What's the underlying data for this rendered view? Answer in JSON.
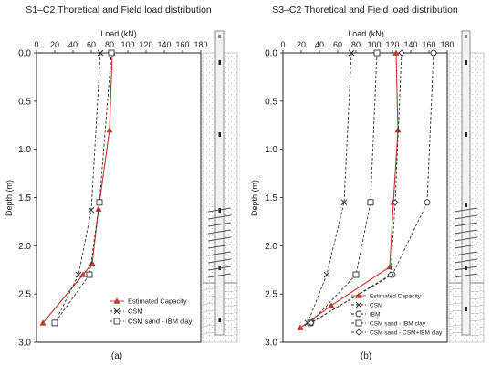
{
  "chart_data": [
    {
      "type": "line",
      "title": "S1–C2 Thoretical and Field load distribution",
      "xlabel": "Load (kN)",
      "ylabel": "Depth (m)",
      "xlim": [
        0,
        180
      ],
      "ylim": [
        0,
        3.0
      ],
      "y_inverted": true,
      "x_axis_position": "top",
      "xticks": [
        "0",
        "20",
        "40",
        "60",
        "80",
        "100",
        "120",
        "140",
        "160",
        "180"
      ],
      "yticks": [
        "0.0",
        "0.5",
        "1.0",
        "1.5",
        "2.0",
        "2.5",
        "3.0"
      ],
      "grid": false,
      "legend_position": "bottom-right",
      "panel_label": "(a)",
      "series": [
        {
          "name": "Estimated Capacity",
          "color": "#c0392b",
          "marker": "triangle",
          "dash": "solid",
          "points": [
            [
              83,
              0.0
            ],
            [
              80,
              0.8
            ],
            [
              68,
              1.62
            ],
            [
              61,
              2.18
            ],
            [
              51,
              2.3
            ],
            [
              7,
              2.8
            ]
          ]
        },
        {
          "name": "CSM",
          "color": "#333333",
          "marker": "x",
          "dash": "dashed",
          "points": [
            [
              70,
              0.0
            ],
            [
              60,
              1.63
            ],
            [
              46,
              2.3
            ],
            [
              20,
              2.8
            ]
          ]
        },
        {
          "name": "CSM sand - IBM clay",
          "color": "#333333",
          "marker": "square",
          "dash": "dashed",
          "points": [
            [
              82,
              0.0
            ],
            [
              69,
              1.55
            ],
            [
              58,
              2.3
            ],
            [
              20,
              2.8
            ]
          ]
        }
      ]
    },
    {
      "type": "line",
      "title": "S3–C2 Thoretical and Field load distribution",
      "xlabel": "Load (kN)",
      "ylabel": "Depth (m)",
      "xlim": [
        0,
        180
      ],
      "ylim": [
        0,
        3.0
      ],
      "y_inverted": true,
      "x_axis_position": "top",
      "xticks": [
        "0",
        "20",
        "40",
        "60",
        "80",
        "100",
        "120",
        "140",
        "160",
        "180"
      ],
      "yticks": [
        "0.0",
        "0.5",
        "1.0",
        "1.5",
        "2.0",
        "2.5",
        "3.0"
      ],
      "grid": false,
      "legend_position": "bottom-right",
      "panel_label": "(b)",
      "series": [
        {
          "name": "Estimated Capacity",
          "color": "#c0392b",
          "marker": "triangle",
          "dash": "solid",
          "points": [
            [
              124,
              0.0
            ],
            [
              126,
              0.8
            ],
            [
              121,
              1.55
            ],
            [
              117,
              2.22
            ],
            [
              53,
              2.62
            ],
            [
              19,
              2.85
            ]
          ]
        },
        {
          "name": "CSM",
          "color": "#333333",
          "marker": "x",
          "dash": "dashed",
          "points": [
            [
              75,
              0.0
            ],
            [
              67,
              1.55
            ],
            [
              48,
              2.3
            ],
            [
              27,
              2.8
            ]
          ]
        },
        {
          "name": "IBM",
          "color": "#333333",
          "marker": "circle",
          "dash": "dashed",
          "points": [
            [
              165,
              0.0
            ],
            [
              158,
              1.55
            ],
            [
              120,
              2.3
            ],
            [
              30,
              2.8
            ]
          ]
        },
        {
          "name": "CSM sand - IBM clay",
          "color": "#333333",
          "marker": "square",
          "dash": "dashed",
          "points": [
            [
              103,
              0.0
            ],
            [
              96,
              1.55
            ],
            [
              80,
              2.3
            ],
            [
              30,
              2.8
            ]
          ]
        },
        {
          "name": "CSM sand - CSM+IBM clay",
          "color": "#333333",
          "marker": "diamond",
          "dash": "dashed",
          "points": [
            [
              130,
              0.0
            ],
            [
              123,
              1.55
            ],
            [
              118,
              2.3
            ],
            [
              31,
              2.8
            ]
          ]
        }
      ]
    }
  ]
}
